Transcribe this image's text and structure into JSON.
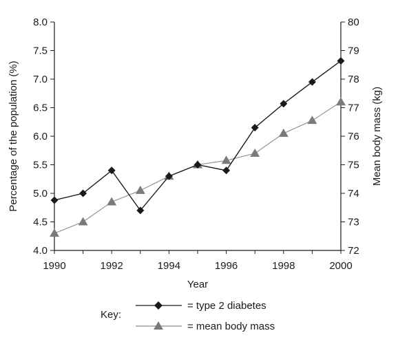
{
  "chart_data": {
    "type": "line",
    "xlabel": "Year",
    "ylabel_left": "Percentage of the population (%)",
    "ylabel_right": "Mean body mass (kg)",
    "x_ticks": [
      "1990",
      "1992",
      "1994",
      "1996",
      "1998",
      "2000"
    ],
    "y_left_ticks": [
      "4.0",
      "4.5",
      "5.0",
      "5.5",
      "6.0",
      "6.5",
      "7.0",
      "7.5",
      "8.0"
    ],
    "y_right_ticks": [
      "72",
      "73",
      "74",
      "75",
      "76",
      "77",
      "78",
      "79",
      "80"
    ],
    "xlim": [
      1990,
      2000
    ],
    "ylim_left": [
      4.0,
      8.0
    ],
    "ylim_right": [
      72,
      80
    ],
    "grid": false,
    "x": [
      1990,
      1991,
      1992,
      1993,
      1994,
      1995,
      1996,
      1997,
      1998,
      1999,
      2000
    ],
    "series": [
      {
        "name": "type 2 diabetes",
        "axis": "left",
        "marker": "diamond",
        "color": "#1a1a1a",
        "values": [
          4.88,
          5.0,
          5.4,
          4.7,
          5.3,
          5.5,
          5.4,
          6.15,
          6.57,
          6.95,
          7.32
        ]
      },
      {
        "name": "mean body mass",
        "axis": "right",
        "marker": "triangle",
        "color": "#7a7a7a",
        "values": [
          72.6,
          73.0,
          73.7,
          74.1,
          74.6,
          75.0,
          75.15,
          75.4,
          76.1,
          76.55,
          77.2
        ]
      }
    ],
    "legend": {
      "placement": "bottom",
      "title": "Key:",
      "entries": [
        "= type 2 diabetes",
        "= mean body mass"
      ]
    }
  }
}
